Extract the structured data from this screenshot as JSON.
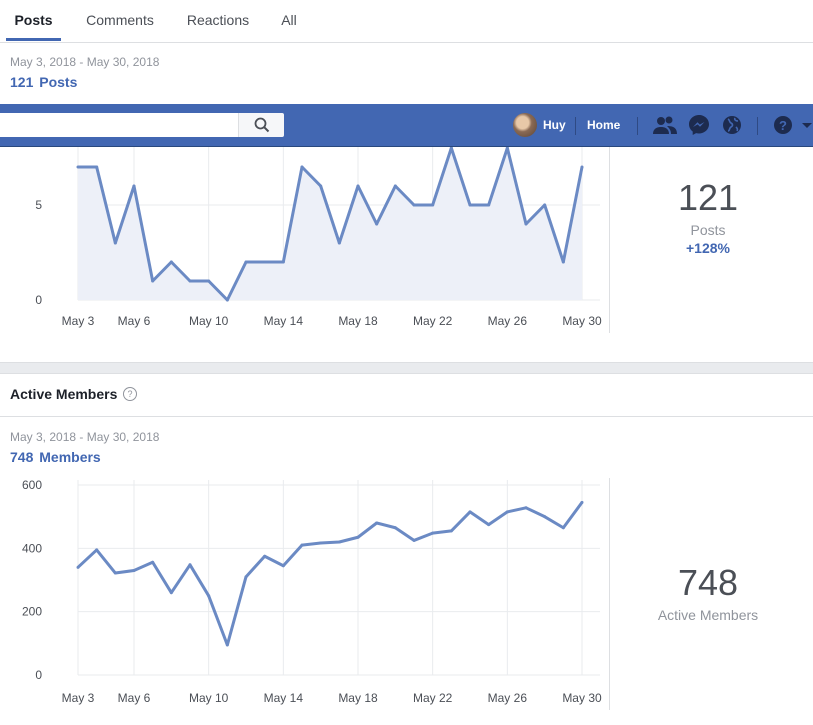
{
  "tabs": [
    {
      "label": "Posts",
      "active": true
    },
    {
      "label": "Comments",
      "active": false
    },
    {
      "label": "Reactions",
      "active": false
    },
    {
      "label": "All",
      "active": false
    }
  ],
  "posts_section": {
    "date_range": "May 3, 2018 - May 30, 2018",
    "count_label": "121 Posts",
    "summary_value": "121",
    "summary_label": "Posts",
    "summary_change": "+128%"
  },
  "topbar": {
    "search_placeholder": "",
    "user_name": "Huy",
    "home_label": "Home",
    "icons": [
      "search-icon",
      "friends-icon",
      "messenger-icon",
      "globe-icon",
      "help-icon",
      "dropdown-arrow-icon"
    ],
    "colors": {
      "bar": "#4267b2",
      "accent": "#4267b2",
      "line": "#6b8ac4",
      "fill": "#edf0f8"
    }
  },
  "members_section": {
    "title": "Active Members",
    "help_icon": "question-icon",
    "date_range": "May 3, 2018 - May 30, 2018",
    "count_label": "748 Members",
    "summary_value": "748",
    "summary_label": "Active Members"
  },
  "chart_data": [
    {
      "type": "area",
      "x": [
        "May 3",
        "May 4",
        "May 5",
        "May 6",
        "May 7",
        "May 8",
        "May 9",
        "May 10",
        "May 11",
        "May 12",
        "May 13",
        "May 14",
        "May 15",
        "May 16",
        "May 17",
        "May 18",
        "May 19",
        "May 20",
        "May 21",
        "May 22",
        "May 23",
        "May 24",
        "May 25",
        "May 26",
        "May 27",
        "May 28",
        "May 29",
        "May 30"
      ],
      "x_tick_labels": [
        "May 3",
        "May 6",
        "May 10",
        "May 14",
        "May 18",
        "May 22",
        "May 26",
        "May 30"
      ],
      "values": [
        7,
        7,
        3,
        6,
        1,
        2,
        1,
        1,
        0,
        2,
        2,
        2,
        7,
        6,
        3,
        6,
        4,
        6,
        5,
        5,
        8,
        5,
        5,
        8,
        4,
        5,
        2,
        7
      ],
      "y_ticks": [
        "0",
        "5"
      ],
      "ylim": [
        0,
        8
      ],
      "grid": true
    },
    {
      "type": "line",
      "x": [
        "May 3",
        "May 4",
        "May 5",
        "May 6",
        "May 7",
        "May 8",
        "May 9",
        "May 10",
        "May 11",
        "May 12",
        "May 13",
        "May 14",
        "May 15",
        "May 16",
        "May 17",
        "May 18",
        "May 19",
        "May 20",
        "May 21",
        "May 22",
        "May 23",
        "May 24",
        "May 25",
        "May 26",
        "May 27",
        "May 28",
        "May 29",
        "May 30"
      ],
      "x_tick_labels": [
        "May 3",
        "May 6",
        "May 10",
        "May 14",
        "May 18",
        "May 22",
        "May 26",
        "May 30"
      ],
      "values": [
        340,
        395,
        322,
        330,
        356,
        260,
        348,
        250,
        95,
        310,
        375,
        345,
        410,
        417,
        420,
        435,
        480,
        465,
        425,
        448,
        455,
        515,
        475,
        515,
        528,
        500,
        465,
        545
      ],
      "y_ticks": [
        "0",
        "200",
        "400",
        "600"
      ],
      "ylim": [
        0,
        600
      ],
      "grid": true
    }
  ]
}
